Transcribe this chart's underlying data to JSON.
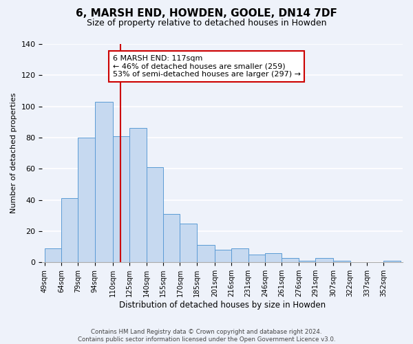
{
  "title": "6, MARSH END, HOWDEN, GOOLE, DN14 7DF",
  "subtitle": "Size of property relative to detached houses in Howden",
  "xlabel": "Distribution of detached houses by size in Howden",
  "ylabel": "Number of detached properties",
  "bar_values": [
    9,
    41,
    80,
    103,
    81,
    86,
    61,
    31,
    25,
    11,
    8,
    9,
    5,
    6,
    3,
    1,
    3,
    1,
    0,
    0,
    1
  ],
  "bar_labels": [
    "49sqm",
    "64sqm",
    "79sqm",
    "94sqm",
    "110sqm",
    "125sqm",
    "140sqm",
    "155sqm",
    "170sqm",
    "185sqm",
    "201sqm",
    "216sqm",
    "231sqm",
    "246sqm",
    "261sqm",
    "276sqm",
    "291sqm",
    "307sqm",
    "322sqm",
    "337sqm",
    "352sqm"
  ],
  "bar_left_edges": [
    49,
    64,
    79,
    94,
    110,
    125,
    140,
    155,
    170,
    185,
    201,
    216,
    231,
    246,
    261,
    276,
    291,
    307,
    322,
    337,
    352
  ],
  "bar_widths": [
    15,
    15,
    15,
    16,
    15,
    15,
    15,
    15,
    15,
    16,
    15,
    15,
    15,
    15,
    15,
    15,
    16,
    15,
    15,
    15,
    15
  ],
  "bar_color": "#c6d9f0",
  "bar_edge_color": "#5b9bd5",
  "vline_x": 117,
  "vline_color": "#cc0000",
  "annotation_text_line1": "6 MARSH END: 117sqm",
  "annotation_text_line2": "← 46% of detached houses are smaller (259)",
  "annotation_text_line3": "53% of semi-detached houses are larger (297) →",
  "annotation_box_facecolor": "#ffffff",
  "annotation_box_edgecolor": "#cc0000",
  "ylim": [
    0,
    140
  ],
  "yticks": [
    0,
    20,
    40,
    60,
    80,
    100,
    120,
    140
  ],
  "footer_line1": "Contains HM Land Registry data © Crown copyright and database right 2024.",
  "footer_line2": "Contains public sector information licensed under the Open Government Licence v3.0.",
  "bg_color": "#eef2fa",
  "grid_color": "#ffffff"
}
